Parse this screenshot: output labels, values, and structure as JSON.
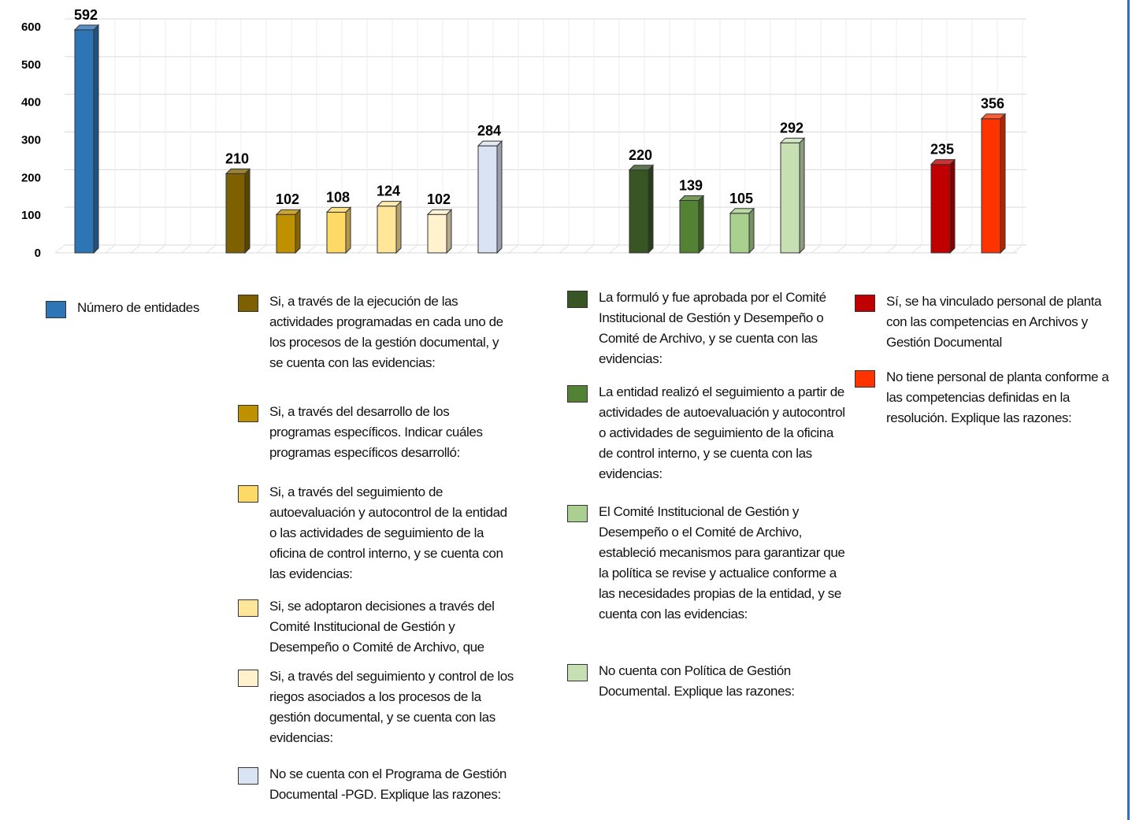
{
  "chart_data": {
    "type": "bar",
    "ylim": [
      0,
      600
    ],
    "yticks": [
      "0",
      "100",
      "200",
      "300",
      "400",
      "500",
      "600"
    ],
    "grid": true,
    "bars": [
      {
        "value": 592,
        "label": "592",
        "color": "#2e75b6",
        "legend": "Número de entidades",
        "group": 0
      },
      {
        "value": 210,
        "label": "210",
        "color": "#7f6000",
        "legend": "Si, a través de la ejecución de las actividades programadas en cada uno de los procesos de la gestión documental, y se cuenta con las evidencias:",
        "group": 1
      },
      {
        "value": 102,
        "label": "102",
        "color": "#bf9000",
        "legend": "Si, a través del desarrollo de los programas específicos. Indicar cuáles programas específicos desarrolló:",
        "group": 1
      },
      {
        "value": 108,
        "label": "108",
        "color": "#ffd966",
        "legend": "Si, a través del seguimiento de autoevaluación y autocontrol de la entidad o las actividades de seguimiento de la oficina de control interno, y se cuenta con las evidencias:",
        "group": 1
      },
      {
        "value": 124,
        "label": "124",
        "color": "#ffe699",
        "legend": "Si, se adoptaron decisiones a través del Comité Institucional de Gestión y Desempeño o Comité de Archivo, que",
        "group": 1
      },
      {
        "value": 102,
        "label": "102",
        "color": "#fff2cc",
        "legend": "Si, a través del seguimiento y control de los riegos asociados a los procesos de la gestión documental, y se cuenta con las evidencias:",
        "group": 1
      },
      {
        "value": 284,
        "label": "284",
        "color": "#dae3f3",
        "legend": "No se cuenta con el Programa de Gestión Documental -PGD. Explique las razones:",
        "group": 1
      },
      {
        "value": 220,
        "label": "220",
        "color": "#375623",
        "legend": "La formuló y fue aprobada por el Comité Institucional de Gestión y Desempeño o Comité de Archivo, y se cuenta con las evidencias:",
        "group": 2
      },
      {
        "value": 139,
        "label": "139",
        "color": "#548235",
        "legend": "La entidad realizó el seguimiento a partir de actividades de autoevaluación y autocontrol o  actividades de seguimiento de la oficina de control interno, y se cuenta con las evidencias:",
        "group": 2
      },
      {
        "value": 105,
        "label": "105",
        "color": "#a9d08e",
        "legend": "El Comité Institucional de Gestión y Desempeño o el Comité de Archivo, estableció mecanismos para garantizar que la política se revise y actualice conforme a las necesidades propias de la entidad, y se cuenta con las evidencias:",
        "group": 2
      },
      {
        "value": 292,
        "label": "292",
        "color": "#c6e0b4",
        "legend": "No cuenta con Política de Gestión Documental. Explique las razones:",
        "group": 2
      },
      {
        "value": 235,
        "label": "235",
        "color": "#c00000",
        "legend": "Sí, se ha vinculado personal de planta con las competencias en Archivos y Gestión Documental",
        "group": 3
      },
      {
        "value": 356,
        "label": "356",
        "color": "#ff3300",
        "legend": "No tiene personal de planta conforme a las competencias definidas en la resolución. Explique las razones:",
        "group": 3
      }
    ]
  }
}
